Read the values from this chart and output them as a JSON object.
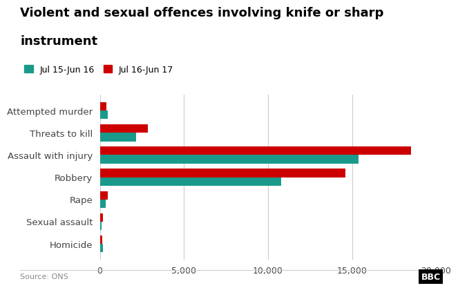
{
  "title_line1": "Violent and sexual offences involving knife or sharp",
  "title_line2": "instrument",
  "categories": [
    "Attempted murder",
    "Threats to kill",
    "Assault with injury",
    "Robbery",
    "Rape",
    "Sexual assault",
    "Homicide"
  ],
  "series1_label": "Jul 15-Jun 16",
  "series2_label": "Jul 16-Jun 17",
  "series1_values": [
    480,
    2150,
    15400,
    10800,
    360,
    110,
    190
  ],
  "series2_values": [
    400,
    2850,
    18500,
    14600,
    480,
    180,
    160
  ],
  "color1": "#1a9a8a",
  "color2": "#cc0000",
  "xlim": [
    0,
    20000
  ],
  "xticks": [
    0,
    5000,
    10000,
    15000,
    20000
  ],
  "xticklabels": [
    "0",
    "5,000",
    "10,000",
    "15,000",
    "20,000"
  ],
  "source_text": "Source: ONS",
  "bbc_text": "BBC",
  "background_color": "#ffffff",
  "title_fontsize": 13,
  "label_fontsize": 9.5,
  "tick_fontsize": 9,
  "bar_height": 0.38
}
